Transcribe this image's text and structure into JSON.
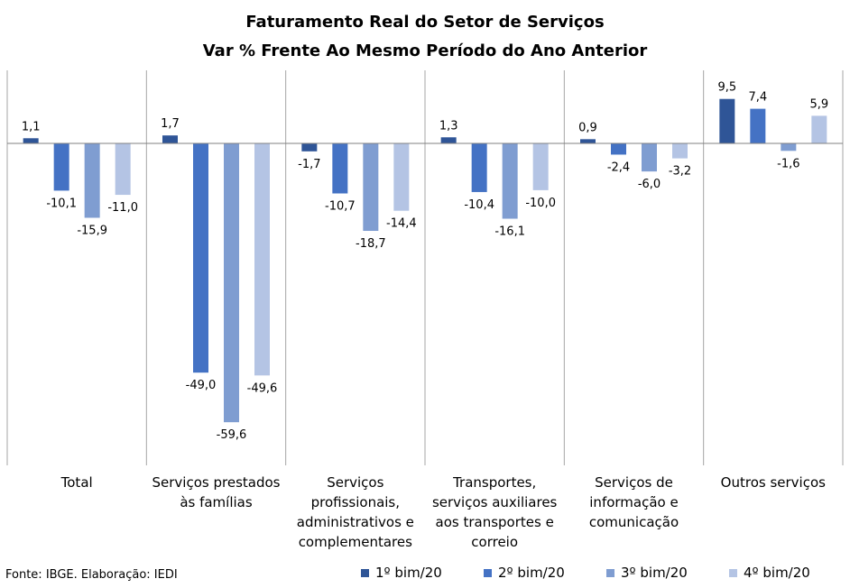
{
  "chart_data": {
    "type": "bar",
    "title": "Faturamento Real do Setor de Serviços",
    "subtitle": "Var % Frente Ao Mesmo Período do Ano Anterior",
    "categories": [
      [
        "Total"
      ],
      [
        "Serviços prestados",
        "às famílias"
      ],
      [
        "Serviços",
        "profissionais,",
        "administrativos e",
        "complementares"
      ],
      [
        "Transportes,",
        "serviços auxiliares",
        "aos transportes e",
        "correio"
      ],
      [
        "Serviços de",
        "informação e",
        "comunicação"
      ],
      [
        "Outros serviços"
      ]
    ],
    "series": [
      {
        "name": "1º bim/20",
        "color": "#2f5597",
        "values": [
          1.1,
          1.7,
          -1.7,
          1.3,
          0.9,
          9.5
        ],
        "labels": [
          "1,1",
          "1,7",
          "-1,7",
          "1,3",
          "0,9",
          "9,5"
        ]
      },
      {
        "name": "2º bim/20",
        "color": "#4472c4",
        "values": [
          -10.1,
          -49.0,
          -10.7,
          -10.4,
          -2.4,
          7.4
        ],
        "labels": [
          "-10,1",
          "-49,0",
          "-10,7",
          "-10,4",
          "-2,4",
          "7,4"
        ]
      },
      {
        "name": "3º bim/20",
        "color": "#7f9dd1",
        "values": [
          -15.9,
          -59.6,
          -18.7,
          -16.1,
          -6.0,
          -1.6
        ],
        "labels": [
          "-15,9",
          "-59,6",
          "-18,7",
          "-16,1",
          "-6,0",
          "-1,6"
        ]
      },
      {
        "name": "4º bim/20",
        "color": "#b4c4e4",
        "values": [
          -11.0,
          -49.6,
          -14.4,
          -10.0,
          -3.2,
          5.9
        ],
        "labels": [
          "-11,0",
          "-49,6",
          "-14,4",
          "-10,0",
          "-3,2",
          "5,9"
        ]
      }
    ],
    "ylim": [
      -64,
      15
    ],
    "grid": false,
    "legend": "bottom"
  },
  "source": "Fonte: IBGE. Elaboração: IEDI"
}
